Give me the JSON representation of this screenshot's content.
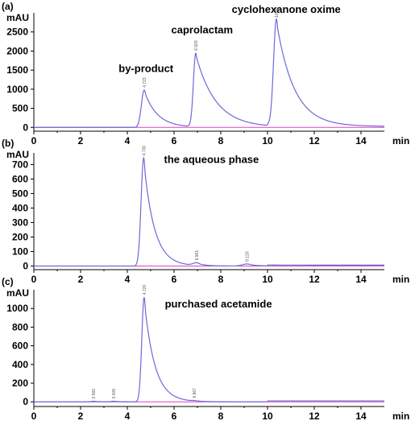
{
  "chart_data": [
    {
      "type": "line",
      "panel_label": "(a)",
      "ylabel": "mAU",
      "xlabel": "min",
      "xlim": [
        0,
        15
      ],
      "ylim": [
        -100,
        3000
      ],
      "x_ticks": [
        0,
        2,
        4,
        6,
        8,
        10,
        12,
        14
      ],
      "y_ticks": [
        0,
        500,
        1000,
        1500,
        2000,
        2500
      ],
      "baseline_color": "#e040c0",
      "trace_color": "#6a6ad8",
      "peaks": [
        {
          "rt": 4.723,
          "height": 980,
          "sigma": 0.12,
          "tail": 0.55
        },
        {
          "rt": 6.929,
          "height": 1930,
          "sigma": 0.1,
          "tail": 0.85
        },
        {
          "rt": 10.38,
          "height": 2780,
          "sigma": 0.12,
          "tail": 0.75
        }
      ],
      "rt_labels": [
        {
          "rt": 4.723,
          "text": "4.723"
        },
        {
          "rt": 6.929,
          "text": "6.929"
        },
        {
          "rt": 10.38,
          "text": "10.38"
        }
      ],
      "annotations": [
        {
          "text": "by-product",
          "x": 4.8,
          "y": 1450
        },
        {
          "text": "caprolactam",
          "x": 7.2,
          "y": 2460
        },
        {
          "text": "cyclohexanone oxime",
          "x": 10.8,
          "y": 3000
        }
      ]
    },
    {
      "type": "line",
      "panel_label": "(b)",
      "ylabel": "mAU",
      "xlabel": "min",
      "xlim": [
        0,
        15
      ],
      "ylim": [
        -25,
        780
      ],
      "x_ticks": [
        0,
        2,
        4,
        6,
        8,
        10,
        12,
        14
      ],
      "y_ticks": [
        0,
        100,
        200,
        300,
        400,
        500,
        600,
        700
      ],
      "baseline_color": "#e040c0",
      "trace_color": "#6a6ad8",
      "peaks": [
        {
          "rt": 4.7,
          "height": 745,
          "sigma": 0.11,
          "tail": 0.45
        },
        {
          "rt": 6.96,
          "height": 18,
          "sigma": 0.15,
          "tail": 0.3
        },
        {
          "rt": 9.12,
          "height": 14,
          "sigma": 0.2,
          "tail": 0.35
        }
      ],
      "rt_labels": [
        {
          "rt": 4.7,
          "text": "4.700"
        },
        {
          "rt": 6.96,
          "text": "6.961"
        },
        {
          "rt": 9.12,
          "text": "9.120"
        }
      ],
      "annotations": [
        {
          "text": "the aqueous phase",
          "x": 7.6,
          "y": 710
        }
      ]
    },
    {
      "type": "line",
      "panel_label": "(c)",
      "ylabel": "mAU",
      "xlabel": "min",
      "xlim": [
        0,
        15
      ],
      "ylim": [
        -50,
        1200
      ],
      "x_ticks": [
        0,
        2,
        4,
        6,
        8,
        10,
        12,
        14
      ],
      "y_ticks": [
        0,
        200,
        400,
        600,
        800,
        1000
      ],
      "baseline_color": "#e040c0",
      "trace_color": "#6a6ad8",
      "peaks": [
        {
          "rt": 2.56,
          "height": 6,
          "sigma": 0.1,
          "tail": 0.2
        },
        {
          "rt": 3.41,
          "height": 6,
          "sigma": 0.1,
          "tail": 0.2
        },
        {
          "rt": 4.72,
          "height": 1120,
          "sigma": 0.1,
          "tail": 0.45
        },
        {
          "rt": 6.87,
          "height": 5,
          "sigma": 0.1,
          "tail": 0.2
        }
      ],
      "rt_labels": [
        {
          "rt": 2.56,
          "text": "2.560"
        },
        {
          "rt": 3.41,
          "text": "3.409"
        },
        {
          "rt": 4.72,
          "text": "4.720"
        },
        {
          "rt": 6.87,
          "text": "6.867"
        }
      ],
      "annotations": [
        {
          "text": "purchased acetamide",
          "x": 7.9,
          "y": 1010
        }
      ]
    }
  ]
}
